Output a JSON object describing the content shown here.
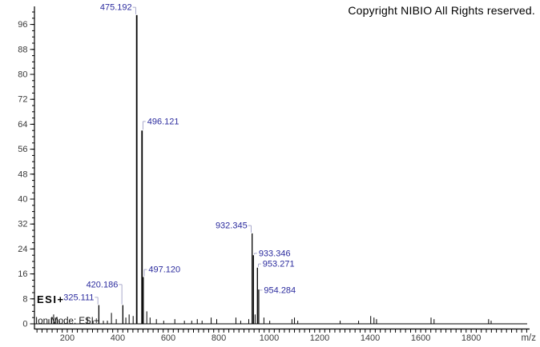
{
  "header": {
    "copyright": "Copyright NIBIO All Rights reserved."
  },
  "annotations": {
    "esi_mode": "ESI+",
    "ion_mode": "Ion Mode: ESI+"
  },
  "chart_data": {
    "type": "bar",
    "subtype": "mass-spectrum-stick-plot",
    "title": "",
    "xlabel": "m/z",
    "ylabel": "",
    "xlim": [
      70,
      2025
    ],
    "ylim": [
      0,
      100
    ],
    "grid": false,
    "x_ticks": [
      200,
      400,
      600,
      800,
      1000,
      1200,
      1400,
      1600,
      1800
    ],
    "y_ticks": [
      0,
      8,
      16,
      24,
      32,
      40,
      48,
      56,
      64,
      72,
      80,
      88,
      96
    ],
    "x_minor_step": 20,
    "y_minor_step": 2,
    "labeled_peaks": [
      {
        "mz": 325.111,
        "intensity": 6,
        "label": "325.111",
        "side": "left",
        "label_level": 8.5
      },
      {
        "mz": 420.186,
        "intensity": 6,
        "label": "420.186",
        "side": "left",
        "label_level": 12.6
      },
      {
        "mz": 475.192,
        "intensity": 99,
        "label": "475.192",
        "side": "left",
        "label_level": 101.5
      },
      {
        "mz": 496.121,
        "intensity": 62,
        "label": "496.121",
        "side": "right",
        "label_level": 64.9
      },
      {
        "mz": 497.12,
        "intensity": 15,
        "label": "497.120",
        "side": "right",
        "label_level": 17.4
      },
      {
        "mz": 932.345,
        "intensity": 29,
        "label": "932.345",
        "side": "left",
        "label_level": 31.5
      },
      {
        "mz": 933.346,
        "intensity": 22,
        "label": "933.346",
        "side": "right",
        "label_level": 22.6
      },
      {
        "mz": 953.271,
        "intensity": 18,
        "label": "953.271",
        "side": "right",
        "label_level": 19.2
      },
      {
        "mz": 954.284,
        "intensity": 11,
        "label": "954.284",
        "side": "right",
        "label_level": 10.8
      }
    ],
    "minor_peaks_format": "[mz, relative_intensity]",
    "minor_peaks": [
      [
        127,
        1.5
      ],
      [
        137,
        2
      ],
      [
        146,
        3
      ],
      [
        153,
        2
      ],
      [
        161,
        1.5
      ],
      [
        169,
        1
      ],
      [
        280,
        2
      ],
      [
        302,
        1
      ],
      [
        343,
        1
      ],
      [
        359,
        1
      ],
      [
        375,
        3.5
      ],
      [
        394,
        1.5
      ],
      [
        432,
        2
      ],
      [
        445,
        3
      ],
      [
        461,
        2.5
      ],
      [
        515,
        4
      ],
      [
        528,
        2
      ],
      [
        553,
        1.5
      ],
      [
        582,
        1
      ],
      [
        626,
        1.5
      ],
      [
        664,
        1
      ],
      [
        693,
        1
      ],
      [
        715,
        1.5
      ],
      [
        734,
        1
      ],
      [
        770,
        2
      ],
      [
        792,
        1.5
      ],
      [
        868,
        2
      ],
      [
        887,
        1
      ],
      [
        919,
        1.5
      ],
      [
        944,
        3
      ],
      [
        979,
        2
      ],
      [
        1002,
        1
      ],
      [
        1090,
        1.5
      ],
      [
        1100,
        2
      ],
      [
        1113,
        1
      ],
      [
        1281,
        1
      ],
      [
        1354,
        1
      ],
      [
        1402,
        2.5
      ],
      [
        1415,
        2
      ],
      [
        1425,
        1.5
      ],
      [
        1641,
        2
      ],
      [
        1653,
        1.5
      ],
      [
        1869,
        1.5
      ],
      [
        1879,
        1
      ]
    ],
    "colors": {
      "background": "#ffffff",
      "peak": "#000000",
      "axis": "#000000",
      "tick_label": "#3a3a3a",
      "peak_label": "#2b2b9e",
      "callout": "#a9a9cb"
    }
  }
}
